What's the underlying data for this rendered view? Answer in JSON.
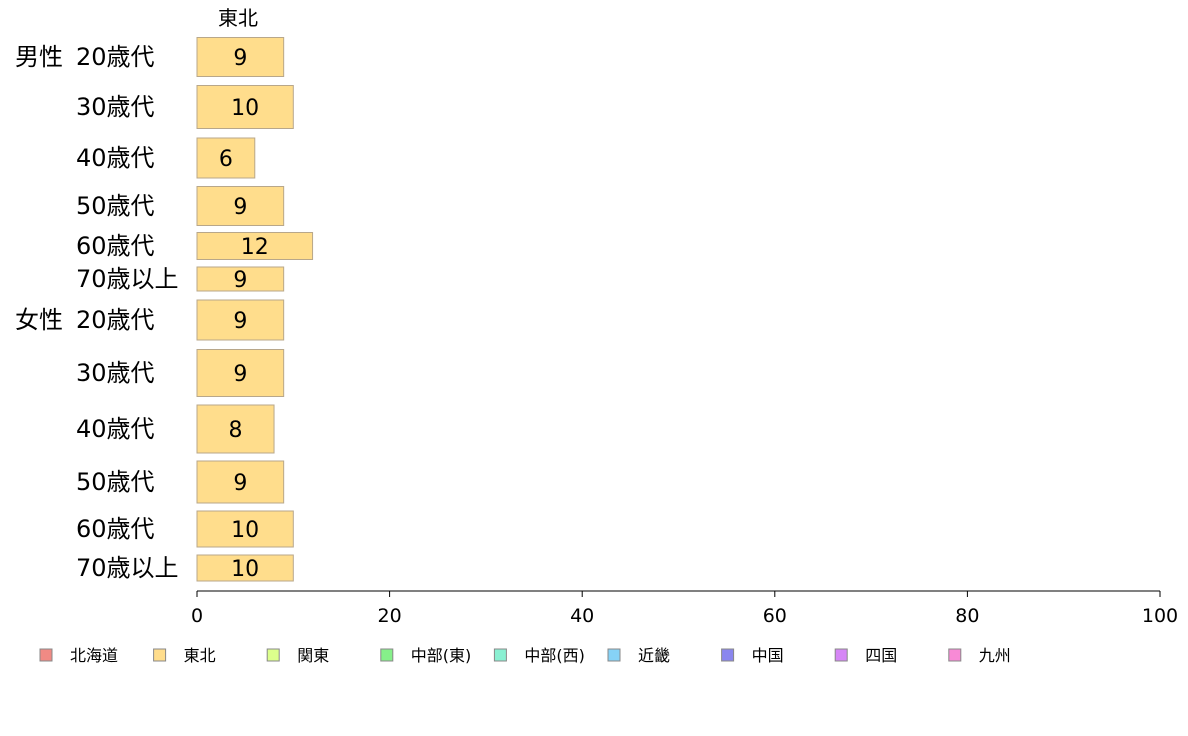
{
  "chart_data": {
    "type": "bar",
    "orientation": "horizontal",
    "column_header": "東北",
    "xlim": [
      0,
      100
    ],
    "x_ticks": [
      0,
      20,
      40,
      60,
      80,
      100
    ],
    "groups": [
      {
        "label": "男性",
        "rows": [
          {
            "label": "20歳代",
            "value": 9
          },
          {
            "label": "30歳代",
            "value": 10
          },
          {
            "label": "40歳代",
            "value": 6
          },
          {
            "label": "50歳代",
            "value": 9
          },
          {
            "label": "60歳代",
            "value": 12
          },
          {
            "label": "70歳以上",
            "value": 9
          }
        ]
      },
      {
        "label": "女性",
        "rows": [
          {
            "label": "20歳代",
            "value": 9
          },
          {
            "label": "30歳代",
            "value": 9
          },
          {
            "label": "40歳代",
            "value": 8
          },
          {
            "label": "50歳代",
            "value": 9
          },
          {
            "label": "60歳代",
            "value": 10
          },
          {
            "label": "70歳以上",
            "value": 10
          }
        ]
      }
    ],
    "bar_series": "東北",
    "legend": {
      "position": "bottom",
      "items": [
        {
          "name": "北海道",
          "color": "#f08a84"
        },
        {
          "name": "東北",
          "color": "#ffdd8c"
        },
        {
          "name": "関東",
          "color": "#dcff8c"
        },
        {
          "name": "中部(東)",
          "color": "#86f08a"
        },
        {
          "name": "中部(西)",
          "color": "#8af0d2"
        },
        {
          "name": "近畿",
          "color": "#86d2f6"
        },
        {
          "name": "中国",
          "color": "#8a86ee"
        },
        {
          "name": "四国",
          "color": "#d686f6"
        },
        {
          "name": "九州",
          "color": "#f88ad6"
        }
      ]
    }
  }
}
